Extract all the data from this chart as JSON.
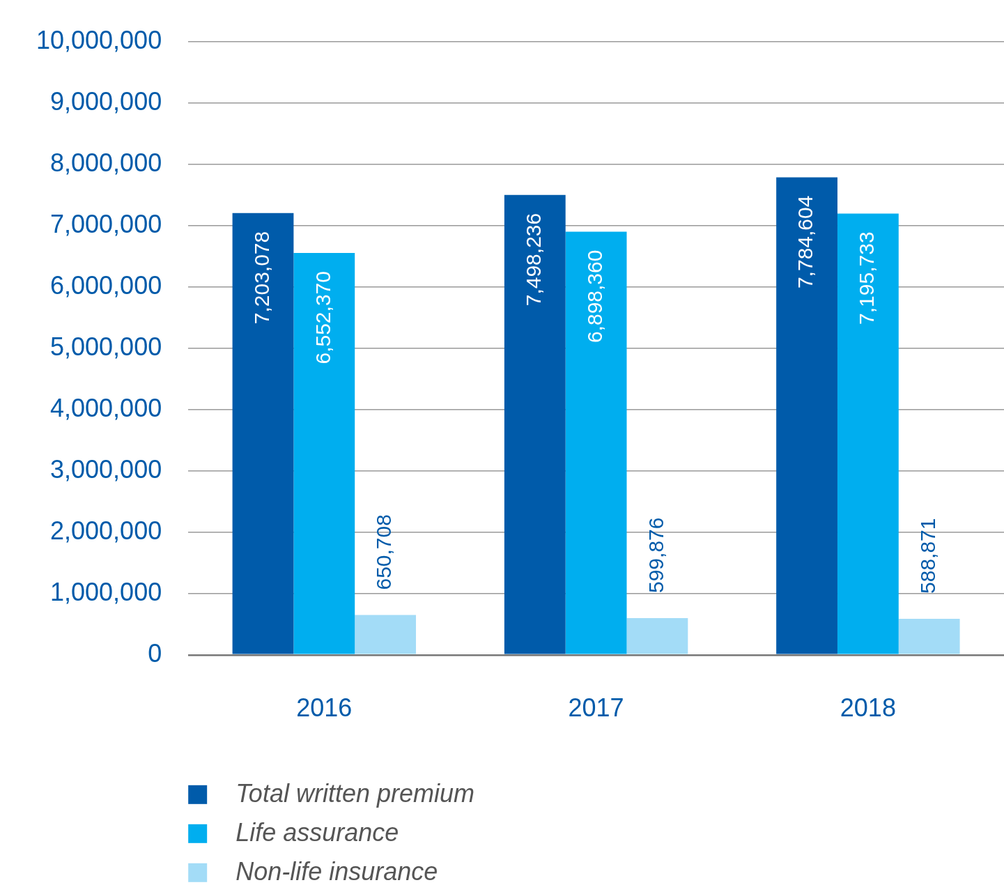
{
  "chart_data": {
    "type": "bar",
    "categories": [
      "2016",
      "2017",
      "2018"
    ],
    "series": [
      {
        "name": "Total written premium",
        "color": "#005baa",
        "values": [
          7203078,
          7498236,
          7784604
        ],
        "value_labels": [
          "7,203,078",
          "7,498,236",
          "7,784,604"
        ]
      },
      {
        "name": "Life assurance",
        "color": "#00aeef",
        "values": [
          6552370,
          6898360,
          7195733
        ],
        "value_labels": [
          "6,552,370",
          "6,898,360",
          "7,195,733"
        ]
      },
      {
        "name": "Non-life insurance",
        "color": "#a3dcf7",
        "values": [
          650708,
          599876,
          588871
        ],
        "value_labels": [
          "650,708",
          "599,876",
          "588,871"
        ]
      }
    ],
    "ylim": [
      0,
      10000000
    ],
    "yticks": [
      {
        "value": 0,
        "label": "0"
      },
      {
        "value": 1000000,
        "label": "1,000,000"
      },
      {
        "value": 2000000,
        "label": "2,000,000"
      },
      {
        "value": 3000000,
        "label": "3,000,000"
      },
      {
        "value": 4000000,
        "label": "4,000,000"
      },
      {
        "value": 5000000,
        "label": "5,000,000"
      },
      {
        "value": 6000000,
        "label": "6,000,000"
      },
      {
        "value": 7000000,
        "label": "7,000,000"
      },
      {
        "value": 8000000,
        "label": "8,000,000"
      },
      {
        "value": 9000000,
        "label": "9,000,000"
      },
      {
        "value": 10000000,
        "label": "10,000,000"
      }
    ],
    "grid": "y",
    "legend": "bottom left"
  }
}
